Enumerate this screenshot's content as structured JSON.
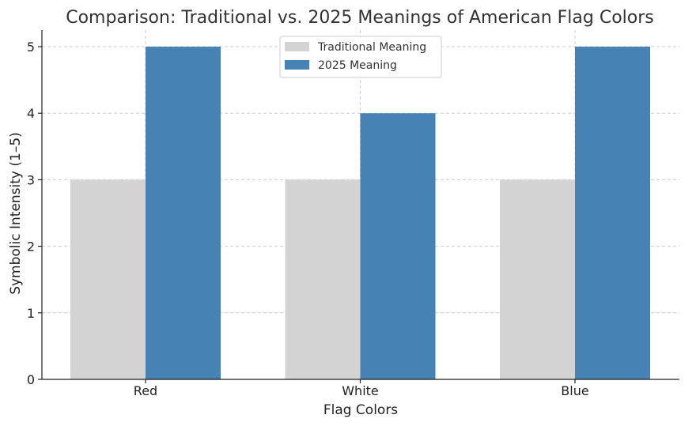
{
  "chart_data": {
    "type": "bar",
    "title": "Comparison: Traditional vs. 2025 Meanings of American Flag Colors",
    "xlabel": "Flag Colors",
    "ylabel": "Symbolic Intensity (1–5)",
    "categories": [
      "Red",
      "White",
      "Blue"
    ],
    "series": [
      {
        "name": "Traditional Meaning",
        "values": [
          3,
          3,
          3
        ],
        "color": "#d3d3d3"
      },
      {
        "name": "2025 Meaning",
        "values": [
          5,
          4,
          5
        ],
        "color": "#4682b4"
      }
    ],
    "ylim": [
      0,
      5.25
    ],
    "yticks": [
      0,
      1,
      2,
      3,
      4,
      5
    ],
    "grid": true,
    "legend_position": "upper-center"
  }
}
